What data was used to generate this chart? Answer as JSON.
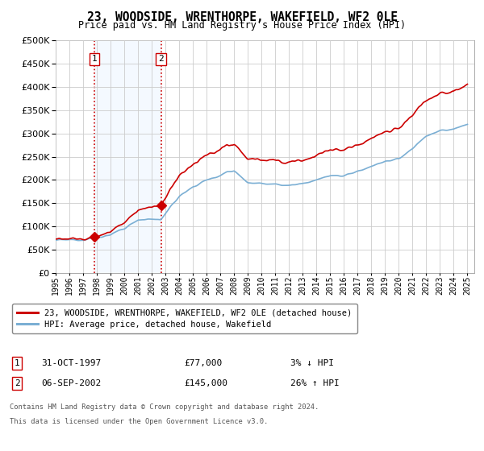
{
  "title": "23, WOODSIDE, WRENTHORPE, WAKEFIELD, WF2 0LE",
  "subtitle": "Price paid vs. HM Land Registry's House Price Index (HPI)",
  "sale1_year": 1997.83,
  "sale1_price": 77000,
  "sale1_label": "1",
  "sale1_date": "31-OCT-1997",
  "sale1_hpi_pct": "3%",
  "sale1_hpi_dir": "↓",
  "sale2_year": 2002.67,
  "sale2_price": 145000,
  "sale2_label": "2",
  "sale2_date": "06-SEP-2002",
  "sale2_hpi_pct": "26%",
  "sale2_hpi_dir": "↑",
  "red_line_color": "#cc0000",
  "blue_line_color": "#7bafd4",
  "marker_color": "#cc0000",
  "vline_color": "#cc0000",
  "grid_color": "#cccccc",
  "bg_color": "#ffffff",
  "shade_color": "#ddeeff",
  "legend_line1": "23, WOODSIDE, WRENTHORPE, WAKEFIELD, WF2 0LE (detached house)",
  "legend_line2": "HPI: Average price, detached house, Wakefield",
  "footnote1": "Contains HM Land Registry data © Crown copyright and database right 2024.",
  "footnote2": "This data is licensed under the Open Government Licence v3.0.",
  "xmin": 1995,
  "xmax": 2025.5,
  "ymin": 0,
  "ymax": 500000,
  "yticks": [
    0,
    50000,
    100000,
    150000,
    200000,
    250000,
    300000,
    350000,
    400000,
    450000,
    500000
  ]
}
